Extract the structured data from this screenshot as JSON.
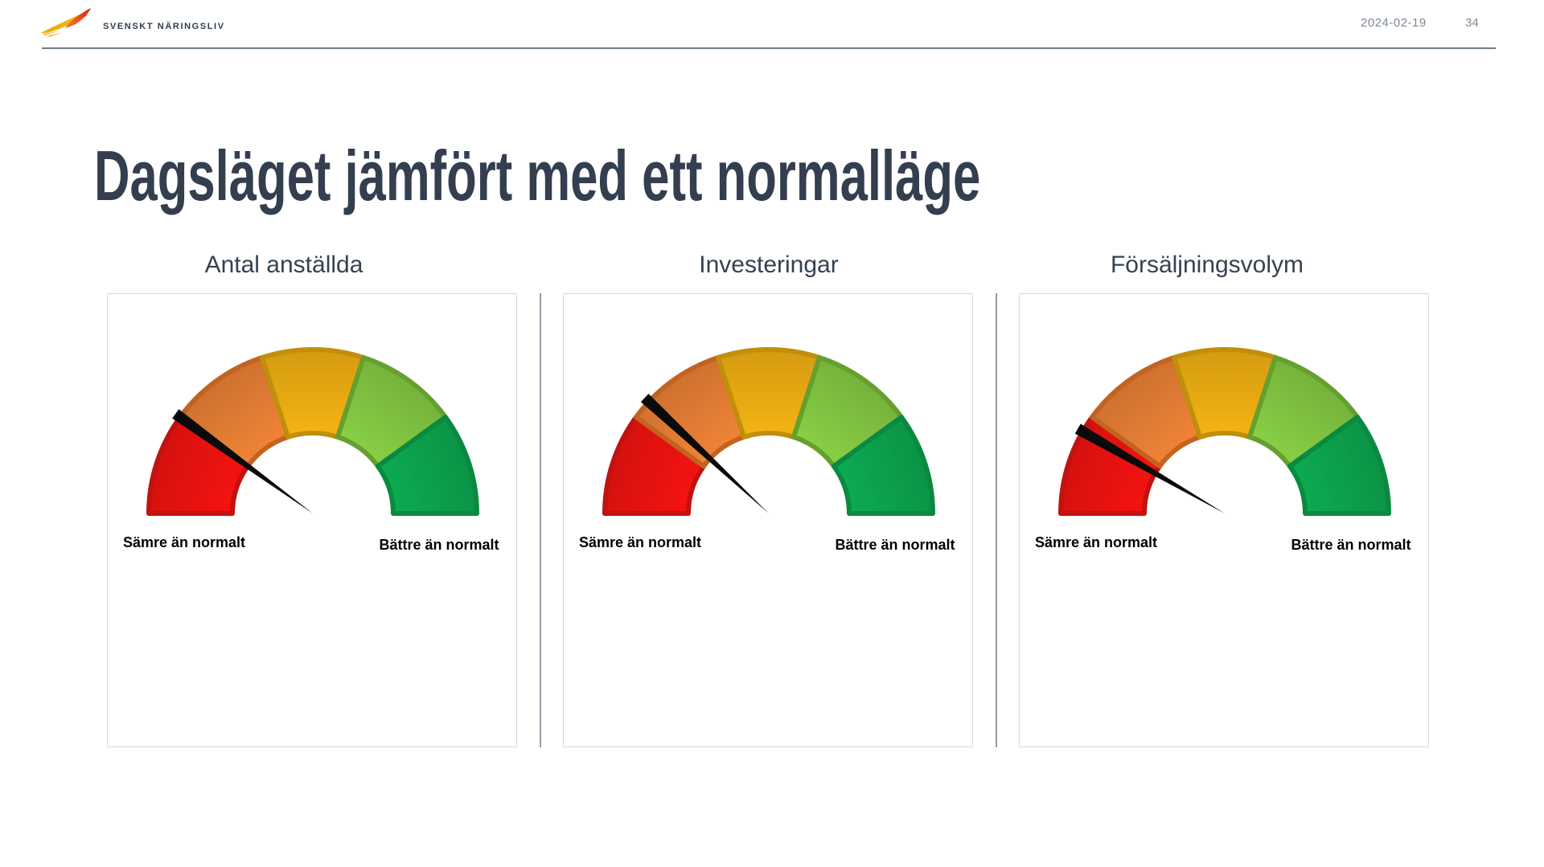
{
  "header": {
    "logo_text": "SVENSKT NÄRINGSLIV",
    "date": "2024-02-19",
    "page_number": "34"
  },
  "title": "Dagsläget jämfört med ett normalläge",
  "chart_data": {
    "type": "gauge",
    "description": "Three semicircular 5-band speedometer gauges, scale from worse-than-normal (left, 180deg) to better-than-normal (right, 0deg)",
    "scale": {
      "start_deg": 180,
      "end_deg": 0,
      "segment_count": 5,
      "outer_radius": 204,
      "inner_radius": 100
    },
    "segment_colors": [
      {
        "name": "red",
        "fill": "#e8120f",
        "rim": "#c11210"
      },
      {
        "name": "orange",
        "fill": "#e07b33",
        "rim": "#c2641f"
      },
      {
        "name": "yellow",
        "fill": "#e6a813",
        "rim": "#c18f0a"
      },
      {
        "name": "light-green",
        "fill": "#7fc240",
        "rim": "#669f2f"
      },
      {
        "name": "green",
        "fill": "#0ca04c",
        "rim": "#0a8a40"
      }
    ],
    "needle_color": "#0a0a0a",
    "gauges": [
      {
        "title": "Antal anställda",
        "needle_angle_deg": 144,
        "label_left": "Sämre än normalt",
        "label_right": "Bättre än normalt"
      },
      {
        "title": "Investeringar",
        "needle_angle_deg": 137,
        "label_left": "Sämre än normalt",
        "label_right": "Bättre än normalt"
      },
      {
        "title": "Försäljningsvolym",
        "needle_angle_deg": 150,
        "label_left": "Sämre än normalt",
        "label_right": "Bättre än normalt"
      }
    ]
  }
}
